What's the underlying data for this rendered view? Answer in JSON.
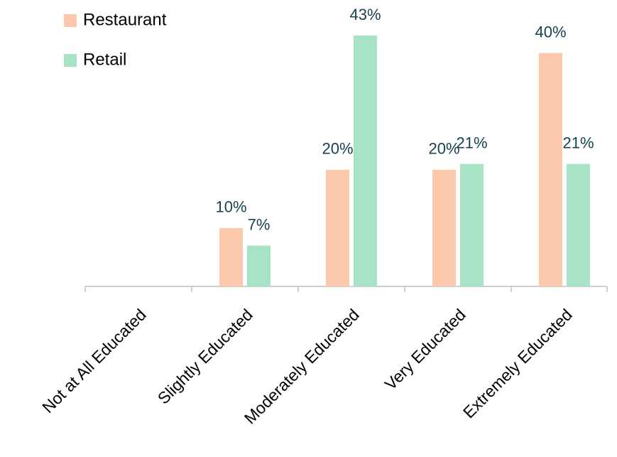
{
  "chart_data": {
    "type": "bar",
    "categories": [
      "Not at All Educated",
      "Slightly Educated",
      "Moderately Educated",
      "Very Educated",
      "Extremely Educated"
    ],
    "series": [
      {
        "name": "Restaurant",
        "color": "#fcc9ad",
        "values": [
          null,
          10,
          20,
          20,
          40
        ],
        "value_labels": [
          null,
          "10%",
          "20%",
          "20%",
          "40%"
        ]
      },
      {
        "name": "Retail",
        "color": "#a8e3c5",
        "values": [
          null,
          7,
          43,
          21,
          21
        ],
        "value_labels": [
          null,
          "7%",
          "43%",
          "21%",
          "21%"
        ]
      }
    ]
  }
}
